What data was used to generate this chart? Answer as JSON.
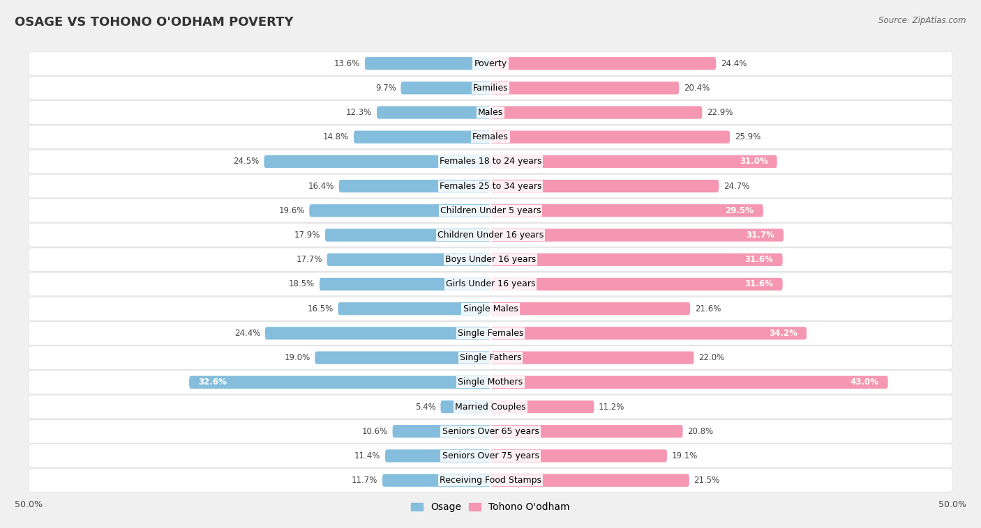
{
  "title": "OSAGE VS TOHONO O'ODHAM POVERTY",
  "source": "Source: ZipAtlas.com",
  "categories": [
    "Poverty",
    "Families",
    "Males",
    "Females",
    "Females 18 to 24 years",
    "Females 25 to 34 years",
    "Children Under 5 years",
    "Children Under 16 years",
    "Boys Under 16 years",
    "Girls Under 16 years",
    "Single Males",
    "Single Females",
    "Single Fathers",
    "Single Mothers",
    "Married Couples",
    "Seniors Over 65 years",
    "Seniors Over 75 years",
    "Receiving Food Stamps"
  ],
  "osage_values": [
    13.6,
    9.7,
    12.3,
    14.8,
    24.5,
    16.4,
    19.6,
    17.9,
    17.7,
    18.5,
    16.5,
    24.4,
    19.0,
    32.6,
    5.4,
    10.6,
    11.4,
    11.7
  ],
  "tohono_values": [
    24.4,
    20.4,
    22.9,
    25.9,
    31.0,
    24.7,
    29.5,
    31.7,
    31.6,
    31.6,
    21.6,
    34.2,
    22.0,
    43.0,
    11.2,
    20.8,
    19.1,
    21.5
  ],
  "osage_color": "#85bedd",
  "tohono_color": "#f597b2",
  "osage_label": "Osage",
  "tohono_label": "Tohono O'odham",
  "axis_limit": 50.0,
  "bg_color": "#f0f0f0",
  "row_bg_color": "#ffffff",
  "row_border_color": "#dddddd",
  "bar_height": 0.52,
  "title_fontsize": 13,
  "label_fontsize": 9,
  "value_fontsize": 8.5,
  "legend_fontsize": 10,
  "axis_tick_fontsize": 9,
  "inside_label_threshold": 28
}
